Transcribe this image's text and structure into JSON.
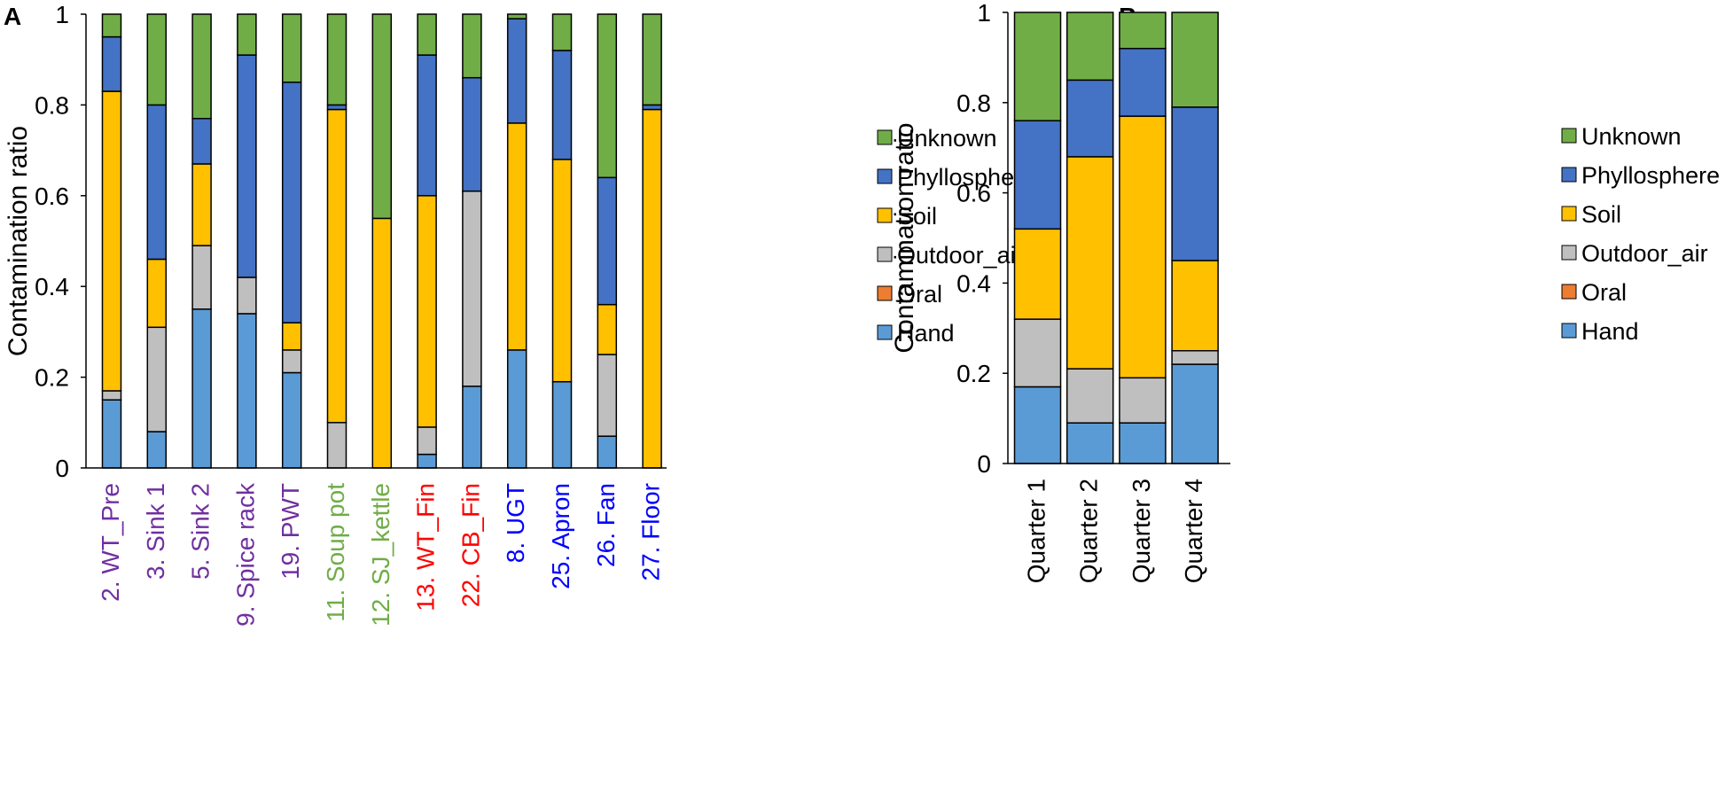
{
  "series_names": [
    "Hand",
    "Oral",
    "Outdoor_air",
    "Soil",
    "Phyllosphere",
    "Unknown"
  ],
  "series_colors": {
    "Hand": "#5b9bd5",
    "Oral": "#ed7d31",
    "Outdoor_air": "#bfbfbf",
    "Soil": "#ffc000",
    "Phyllosphere": "#4472c4",
    "Unknown": "#70ad47"
  },
  "legend_order": [
    "Unknown",
    "Phyllosphere",
    "Soil",
    "Outdoor_air",
    "Oral",
    "Hand"
  ],
  "chart_data": [
    {
      "panel": "A",
      "type": "bar",
      "stacked": true,
      "ylabel": "Contamination ratio",
      "ylim": [
        0,
        1
      ],
      "yticks": [
        "0",
        "0.2",
        "0.4",
        "0.6",
        "0.8",
        "1"
      ],
      "legend_position": "right",
      "categories": [
        "2. WT_Pre",
        "3. Sink 1",
        "5. Sink 2",
        "9. Spice rack",
        "19. PWT",
        "11. Soup pot",
        "12. SJ_kettle",
        "13. WT_Fin",
        "22. CB_Fin",
        "8. UGT",
        "25. Apron",
        "26. Fan",
        "27. Floor"
      ],
      "category_colors": [
        "#7030a0",
        "#7030a0",
        "#7030a0",
        "#7030a0",
        "#7030a0",
        "#70ad47",
        "#70ad47",
        "#ff0000",
        "#ff0000",
        "#0000ff",
        "#0000ff",
        "#0000ff",
        "#0000ff"
      ],
      "series": [
        {
          "name": "Hand",
          "values": [
            0.15,
            0.08,
            0.35,
            0.34,
            0.21,
            0.0,
            0.0,
            0.03,
            0.18,
            0.26,
            0.19,
            0.07,
            0.0
          ]
        },
        {
          "name": "Oral",
          "values": [
            0.0,
            0.0,
            0.0,
            0.0,
            0.0,
            0.0,
            0.0,
            0.0,
            0.0,
            0.0,
            0.0,
            0.0,
            0.0
          ]
        },
        {
          "name": "Outdoor_air",
          "values": [
            0.02,
            0.23,
            0.14,
            0.08,
            0.05,
            0.1,
            0.0,
            0.06,
            0.43,
            0.0,
            0.0,
            0.18,
            0.0
          ]
        },
        {
          "name": "Soil",
          "values": [
            0.66,
            0.15,
            0.18,
            0.0,
            0.06,
            0.69,
            0.55,
            0.51,
            0.0,
            0.5,
            0.49,
            0.11,
            0.79
          ]
        },
        {
          "name": "Phyllosphere",
          "values": [
            0.12,
            0.34,
            0.1,
            0.49,
            0.53,
            0.01,
            0.0,
            0.31,
            0.25,
            0.23,
            0.24,
            0.28,
            0.01
          ]
        },
        {
          "name": "Unknown",
          "values": [
            0.05,
            0.2,
            0.23,
            0.09,
            0.15,
            0.2,
            0.45,
            0.09,
            0.14,
            0.01,
            0.08,
            0.36,
            0.2
          ]
        }
      ]
    },
    {
      "panel": "B",
      "type": "bar",
      "stacked": true,
      "ylabel": "Contamination ratio",
      "ylim": [
        0,
        1
      ],
      "yticks": [
        "0",
        "0.2",
        "0.4",
        "0.6",
        "0.8",
        "1"
      ],
      "legend_position": "right",
      "categories": [
        "Quarter 1",
        "Quarter 2",
        "Quarter 3",
        "Quarter 4"
      ],
      "category_colors": [
        "#000000",
        "#000000",
        "#000000",
        "#000000"
      ],
      "series": [
        {
          "name": "Hand",
          "values": [
            0.17,
            0.09,
            0.09,
            0.22
          ]
        },
        {
          "name": "Oral",
          "values": [
            0.0,
            0.0,
            0.0,
            0.0
          ]
        },
        {
          "name": "Outdoor_air",
          "values": [
            0.15,
            0.12,
            0.1,
            0.03
          ]
        },
        {
          "name": "Soil",
          "values": [
            0.2,
            0.47,
            0.58,
            0.2
          ]
        },
        {
          "name": "Phyllosphere",
          "values": [
            0.24,
            0.17,
            0.15,
            0.34
          ]
        },
        {
          "name": "Unknown",
          "values": [
            0.24,
            0.15,
            0.08,
            0.21
          ]
        }
      ]
    }
  ]
}
